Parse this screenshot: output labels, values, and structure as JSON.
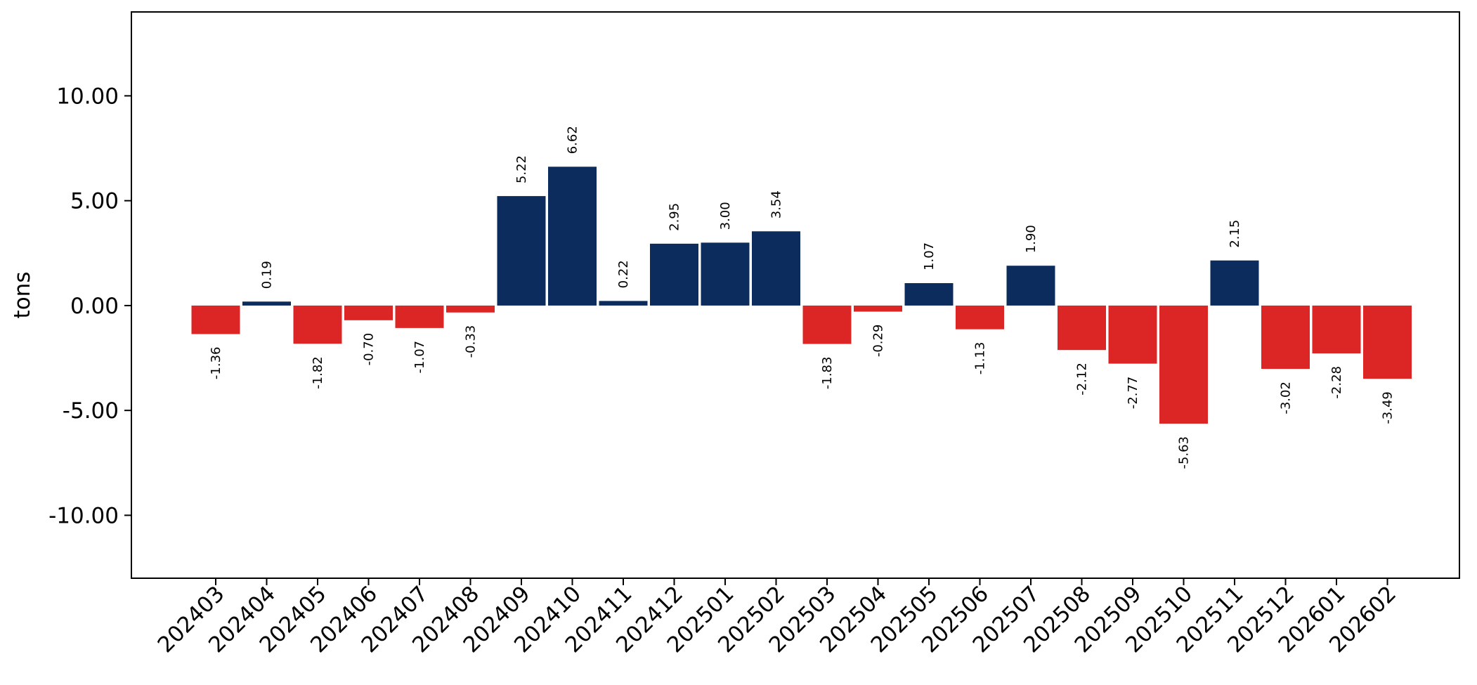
{
  "chart_data": {
    "type": "bar",
    "title": "",
    "xlabel": "",
    "ylabel": "tons",
    "ylim": [
      -13,
      14
    ],
    "yticks": [
      -10,
      -5,
      0,
      5,
      10
    ],
    "ytick_labels": [
      "-10.00",
      "-5.00",
      "0.00",
      "5.00",
      "10.00"
    ],
    "categories": [
      "202403",
      "202404",
      "202405",
      "202406",
      "202407",
      "202408",
      "202409",
      "202410",
      "202411",
      "202412",
      "202501",
      "202502",
      "202503",
      "202504",
      "202505",
      "202506",
      "202507",
      "202508",
      "202509",
      "202510",
      "202511",
      "202512",
      "202601",
      "202602"
    ],
    "values": [
      -1.36,
      0.19,
      -1.82,
      -0.7,
      -1.07,
      -0.33,
      5.22,
      6.62,
      0.22,
      2.95,
      3.0,
      3.54,
      -1.83,
      -0.29,
      1.07,
      -1.13,
      1.9,
      -2.12,
      -2.77,
      -5.63,
      2.15,
      -3.02,
      -2.28,
      -3.49
    ],
    "value_labels": [
      "-1.36",
      "0.19",
      "-1.82",
      "-0.70",
      "-1.07",
      "-0.33",
      "5.22",
      "6.62",
      "0.22",
      "2.95",
      "3.00",
      "3.54",
      "-1.83",
      "-0.29",
      "1.07",
      "-1.13",
      "1.90",
      "-2.12",
      "-2.77",
      "-5.63",
      "2.15",
      "-3.02",
      "-2.28",
      "-3.49"
    ],
    "positive_color": "#0c2c5e",
    "negative_color": "#dc2626",
    "grid": false,
    "legend": "none"
  }
}
